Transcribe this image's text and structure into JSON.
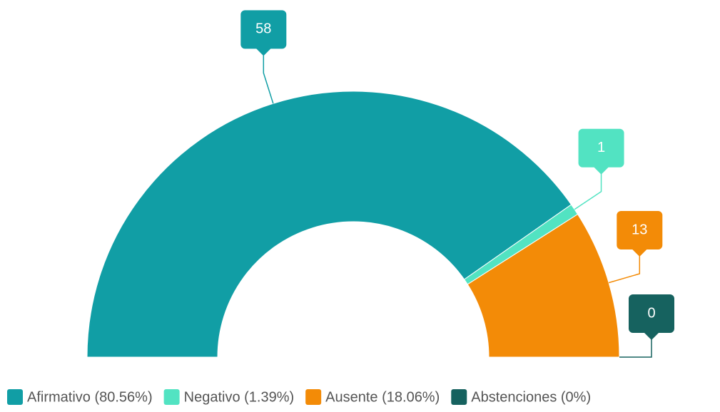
{
  "chart_data": {
    "type": "semi-donut",
    "categories": [
      "Afirmativo (80.56%)",
      "Negativo (1.39%)",
      "Ausente (18.06%)",
      "Abstenciones (0%)"
    ],
    "values": [
      58,
      1,
      13,
      0
    ],
    "colors": [
      "#119ea5",
      "#52e3c2",
      "#f38b07",
      "#16625f"
    ],
    "legend": "bottom"
  }
}
